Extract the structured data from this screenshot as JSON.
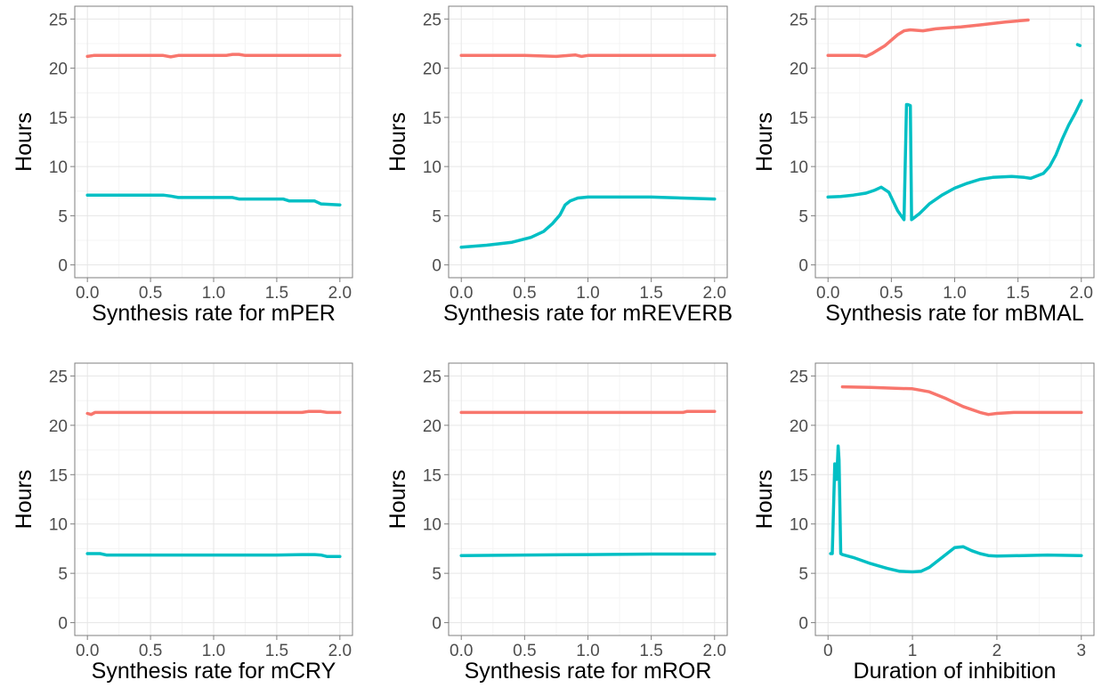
{
  "chart_data": [
    {
      "type": "line",
      "xlabel": "Synthesis rate for mPER",
      "ylabel": "Hours",
      "xlim": [
        -0.1,
        2.1
      ],
      "ylim": [
        -1.3,
        26.3
      ],
      "xticks": [
        0.0,
        0.5,
        1.0,
        1.5,
        2.0
      ],
      "xtick_labels": [
        "0.0",
        "0.5",
        "1.0",
        "1.5",
        "2.0"
      ],
      "yticks": [
        0,
        5,
        10,
        15,
        20,
        25
      ],
      "ytick_labels": [
        "0",
        "5",
        "10",
        "15",
        "20",
        "25"
      ],
      "grid": true,
      "series": [
        {
          "color": "#F8766D",
          "x": [
            0.0,
            0.05,
            0.3,
            0.6,
            0.66,
            0.72,
            1.1,
            1.15,
            1.2,
            1.25,
            1.6,
            2.0
          ],
          "y": [
            21.2,
            21.3,
            21.3,
            21.3,
            21.15,
            21.3,
            21.3,
            21.4,
            21.4,
            21.3,
            21.3,
            21.3
          ]
        },
        {
          "color": "#00BFC4",
          "x": [
            0.0,
            0.3,
            0.6,
            0.66,
            0.72,
            1.15,
            1.2,
            1.3,
            1.55,
            1.6,
            1.8,
            1.85,
            2.0
          ],
          "y": [
            7.1,
            7.1,
            7.1,
            7.0,
            6.85,
            6.85,
            6.7,
            6.7,
            6.7,
            6.5,
            6.5,
            6.2,
            6.1
          ]
        }
      ]
    },
    {
      "type": "line",
      "xlabel": "Synthesis rate for mREVERB",
      "ylabel": "Hours",
      "xlim": [
        -0.1,
        2.1
      ],
      "ylim": [
        -1.3,
        26.3
      ],
      "xticks": [
        0.0,
        0.5,
        1.0,
        1.5,
        2.0
      ],
      "xtick_labels": [
        "0.0",
        "0.5",
        "1.0",
        "1.5",
        "2.0"
      ],
      "yticks": [
        0,
        5,
        10,
        15,
        20,
        25
      ],
      "ytick_labels": [
        "0",
        "5",
        "10",
        "15",
        "20",
        "25"
      ],
      "grid": true,
      "series": [
        {
          "color": "#F8766D",
          "x": [
            0.0,
            0.5,
            0.75,
            0.85,
            0.9,
            0.95,
            1.0,
            1.5,
            2.0
          ],
          "y": [
            21.3,
            21.3,
            21.2,
            21.3,
            21.35,
            21.2,
            21.3,
            21.3,
            21.3
          ]
        },
        {
          "color": "#00BFC4",
          "x": [
            0.0,
            0.2,
            0.4,
            0.55,
            0.65,
            0.72,
            0.78,
            0.82,
            0.86,
            0.92,
            1.0,
            1.5,
            2.0
          ],
          "y": [
            1.8,
            2.0,
            2.3,
            2.8,
            3.4,
            4.2,
            5.1,
            6.1,
            6.5,
            6.8,
            6.9,
            6.9,
            6.7
          ]
        }
      ]
    },
    {
      "type": "line",
      "xlabel": "Synthesis rate for mBMAL",
      "ylabel": "Hours",
      "xlim": [
        -0.1,
        2.1
      ],
      "ylim": [
        -1.3,
        26.3
      ],
      "xticks": [
        0.0,
        0.5,
        1.0,
        1.5,
        2.0
      ],
      "xtick_labels": [
        "0.0",
        "0.5",
        "1.0",
        "1.5",
        "2.0"
      ],
      "yticks": [
        0,
        5,
        10,
        15,
        20,
        25
      ],
      "ytick_labels": [
        "0",
        "5",
        "10",
        "15",
        "20",
        "25"
      ],
      "grid": true,
      "series": [
        {
          "color": "#F8766D",
          "x": [
            0.0,
            0.15,
            0.25,
            0.3,
            0.35,
            0.45,
            0.55,
            0.6,
            0.65,
            0.75,
            0.85,
            0.95,
            1.05,
            1.2,
            1.4,
            1.58
          ],
          "y": [
            21.3,
            21.3,
            21.3,
            21.2,
            21.5,
            22.3,
            23.4,
            23.8,
            23.9,
            23.8,
            24.0,
            24.1,
            24.2,
            24.4,
            24.7,
            24.9
          ]
        },
        {
          "color": "#00BFC4",
          "x": [
            1.97,
            1.99
          ],
          "y": [
            22.4,
            22.3
          ]
        },
        {
          "color": "#00BFC4",
          "x": [
            0.0,
            0.1,
            0.2,
            0.3,
            0.37,
            0.42,
            0.48,
            0.55,
            0.6,
            0.62,
            0.63,
            0.65,
            0.66,
            0.67,
            0.72,
            0.8,
            0.9,
            1.0,
            1.1,
            1.2,
            1.3,
            1.45,
            1.55,
            1.6,
            1.7,
            1.75,
            1.8,
            1.85,
            1.9,
            1.95,
            2.0
          ],
          "y": [
            6.9,
            6.95,
            7.1,
            7.3,
            7.6,
            7.9,
            7.4,
            5.5,
            4.6,
            16.3,
            16.3,
            16.2,
            4.6,
            4.7,
            5.2,
            6.2,
            7.1,
            7.8,
            8.3,
            8.7,
            8.9,
            9.0,
            8.9,
            8.8,
            9.3,
            10.0,
            11.2,
            12.8,
            14.2,
            15.4,
            16.7
          ]
        }
      ]
    },
    {
      "type": "line",
      "xlabel": "Synthesis rate for mCRY",
      "ylabel": "Hours",
      "xlim": [
        -0.1,
        2.1
      ],
      "ylim": [
        -1.3,
        26.3
      ],
      "xticks": [
        0.0,
        0.5,
        1.0,
        1.5,
        2.0
      ],
      "xtick_labels": [
        "0.0",
        "0.5",
        "1.0",
        "1.5",
        "2.0"
      ],
      "yticks": [
        0,
        5,
        10,
        15,
        20,
        25
      ],
      "ytick_labels": [
        "0",
        "5",
        "10",
        "15",
        "20",
        "25"
      ],
      "grid": true,
      "series": [
        {
          "color": "#F8766D",
          "x": [
            0.0,
            0.03,
            0.06,
            0.5,
            1.0,
            1.5,
            1.7,
            1.75,
            1.85,
            1.9,
            2.0
          ],
          "y": [
            21.2,
            21.1,
            21.3,
            21.3,
            21.3,
            21.3,
            21.3,
            21.4,
            21.4,
            21.3,
            21.3
          ]
        },
        {
          "color": "#00BFC4",
          "x": [
            0.0,
            0.1,
            0.15,
            0.5,
            1.0,
            1.5,
            1.7,
            1.8,
            1.85,
            1.9,
            2.0
          ],
          "y": [
            7.0,
            7.0,
            6.85,
            6.85,
            6.85,
            6.85,
            6.9,
            6.9,
            6.85,
            6.7,
            6.7
          ]
        }
      ]
    },
    {
      "type": "line",
      "xlabel": "Synthesis rate for mROR",
      "ylabel": "Hours",
      "xlim": [
        -0.1,
        2.1
      ],
      "ylim": [
        -1.3,
        26.3
      ],
      "xticks": [
        0.0,
        0.5,
        1.0,
        1.5,
        2.0
      ],
      "xtick_labels": [
        "0.0",
        "0.5",
        "1.0",
        "1.5",
        "2.0"
      ],
      "yticks": [
        0,
        5,
        10,
        15,
        20,
        25
      ],
      "ytick_labels": [
        "0",
        "5",
        "10",
        "15",
        "20",
        "25"
      ],
      "grid": true,
      "series": [
        {
          "color": "#F8766D",
          "x": [
            0.0,
            0.5,
            1.0,
            1.5,
            1.75,
            1.78,
            2.0
          ],
          "y": [
            21.3,
            21.3,
            21.3,
            21.3,
            21.3,
            21.4,
            21.4
          ]
        },
        {
          "color": "#00BFC4",
          "x": [
            0.0,
            0.5,
            1.0,
            1.5,
            2.0
          ],
          "y": [
            6.8,
            6.85,
            6.9,
            6.95,
            6.95
          ]
        }
      ]
    },
    {
      "type": "line",
      "xlabel": "Duration of inhibition",
      "ylabel": "Hours",
      "xlim": [
        -0.15,
        3.15
      ],
      "ylim": [
        -1.3,
        26.3
      ],
      "xticks": [
        0,
        1,
        2,
        3
      ],
      "xtick_labels": [
        "0",
        "1",
        "2",
        "3"
      ],
      "yticks": [
        0,
        5,
        10,
        15,
        20,
        25
      ],
      "ytick_labels": [
        "0",
        "5",
        "10",
        "15",
        "20",
        "25"
      ],
      "grid": true,
      "series": [
        {
          "color": "#F8766D",
          "x": [
            0.17,
            0.5,
            0.8,
            1.0,
            1.2,
            1.4,
            1.6,
            1.8,
            1.9,
            2.0,
            2.2,
            2.5,
            2.8,
            3.0
          ],
          "y": [
            23.9,
            23.85,
            23.75,
            23.7,
            23.4,
            22.7,
            21.9,
            21.3,
            21.1,
            21.2,
            21.3,
            21.3,
            21.3,
            21.3
          ]
        },
        {
          "color": "#00BFC4",
          "x": [
            0.03,
            0.05,
            0.08,
            0.1,
            0.11,
            0.12,
            0.13,
            0.15,
            0.17,
            0.3,
            0.5,
            0.7,
            0.85,
            1.0,
            1.1,
            1.2,
            1.35,
            1.5,
            1.6,
            1.7,
            1.8,
            1.9,
            2.0,
            2.3,
            2.6,
            3.0
          ],
          "y": [
            7.0,
            7.0,
            16.1,
            14.5,
            16.0,
            17.9,
            16.5,
            7.0,
            6.9,
            6.6,
            6.0,
            5.5,
            5.2,
            5.15,
            5.2,
            5.6,
            6.6,
            7.6,
            7.7,
            7.3,
            7.0,
            6.8,
            6.75,
            6.8,
            6.85,
            6.8
          ]
        }
      ]
    }
  ]
}
